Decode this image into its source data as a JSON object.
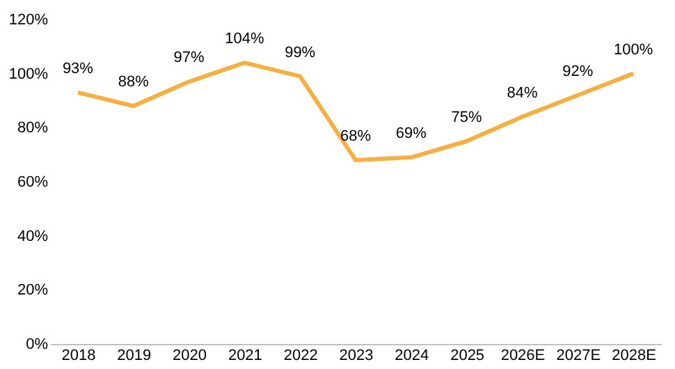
{
  "chart_data": {
    "type": "line",
    "categories": [
      "2018",
      "2019",
      "2020",
      "2021",
      "2022",
      "2023",
      "2024",
      "2025",
      "2026E",
      "2027E",
      "2028E"
    ],
    "series": [
      {
        "color": "#f5b041",
        "values": [
          93,
          88,
          97,
          104,
          99,
          68,
          69,
          75,
          84,
          92,
          100
        ]
      }
    ],
    "value_labels": [
      "93%",
      "88%",
      "97%",
      "104%",
      "99%",
      "68%",
      "69%",
      "75%",
      "84%",
      "92%",
      "100%"
    ],
    "ylim": [
      0,
      120
    ],
    "yticks": [
      {
        "value": 0,
        "label": "0%"
      },
      {
        "value": 20,
        "label": "20%"
      },
      {
        "value": 40,
        "label": "40%"
      },
      {
        "value": 60,
        "label": "60%"
      },
      {
        "value": 80,
        "label": "80%"
      },
      {
        "value": 100,
        "label": "100%"
      },
      {
        "value": 120,
        "label": "120%"
      }
    ],
    "grid": false,
    "marker": "none",
    "line_style": "solid"
  }
}
